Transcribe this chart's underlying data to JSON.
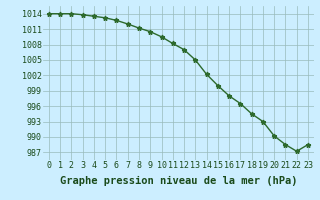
{
  "x": [
    0,
    1,
    2,
    3,
    4,
    5,
    6,
    7,
    8,
    9,
    10,
    11,
    12,
    13,
    14,
    15,
    16,
    17,
    18,
    19,
    20,
    21,
    22,
    23
  ],
  "y": [
    1014.0,
    1014.0,
    1014.0,
    1013.8,
    1013.5,
    1013.2,
    1012.7,
    1012.0,
    1011.2,
    1010.5,
    1009.5,
    1008.2,
    1007.0,
    1005.0,
    1002.2,
    1000.0,
    998.0,
    996.5,
    994.5,
    993.0,
    990.2,
    988.5,
    987.2,
    988.5
  ],
  "line_color": "#2d6a2d",
  "marker": "*",
  "marker_color": "#2d6a2d",
  "bg_color": "#cceeff",
  "grid_color": "#99bbbb",
  "xlabel": "Graphe pression niveau de la mer (hPa)",
  "xlabel_color": "#1a4a1a",
  "xlabel_fontsize": 7.5,
  "tick_color": "#1a4a1a",
  "tick_fontsize": 6,
  "ylim": [
    985.5,
    1015.5
  ],
  "yticks": [
    987,
    990,
    993,
    996,
    999,
    1002,
    1005,
    1008,
    1011,
    1014
  ],
  "xlim": [
    -0.5,
    23.5
  ],
  "xticks": [
    0,
    1,
    2,
    3,
    4,
    5,
    6,
    7,
    8,
    9,
    10,
    11,
    12,
    13,
    14,
    15,
    16,
    17,
    18,
    19,
    20,
    21,
    22,
    23
  ],
  "line_width": 1.0,
  "marker_size": 3.5
}
